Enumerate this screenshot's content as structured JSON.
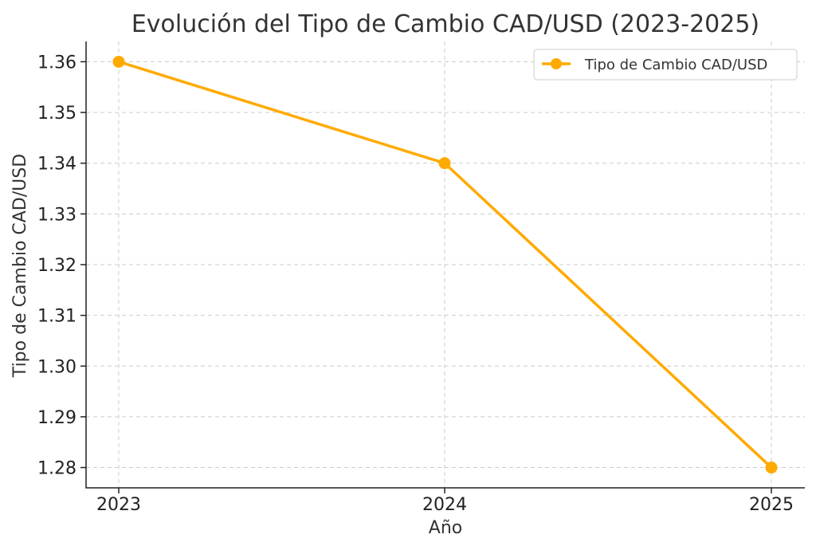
{
  "chart_data": {
    "type": "line",
    "title": "Evolución del Tipo de Cambio CAD/USD (2023-2025)",
    "xlabel": "Año",
    "ylabel": "Tipo de Cambio CAD/USD",
    "x": [
      "2023",
      "2024",
      "2025"
    ],
    "series": [
      {
        "name": "Tipo de Cambio CAD/USD",
        "values": [
          1.36,
          1.34,
          1.28
        ],
        "color": "#FFAA00",
        "marker": "circle"
      }
    ],
    "yticks": [
      "1.28",
      "1.29",
      "1.30",
      "1.31",
      "1.32",
      "1.33",
      "1.34",
      "1.35",
      "1.36"
    ],
    "ylim": [
      1.276,
      1.364
    ],
    "grid": true,
    "legend_position": "top-right"
  }
}
